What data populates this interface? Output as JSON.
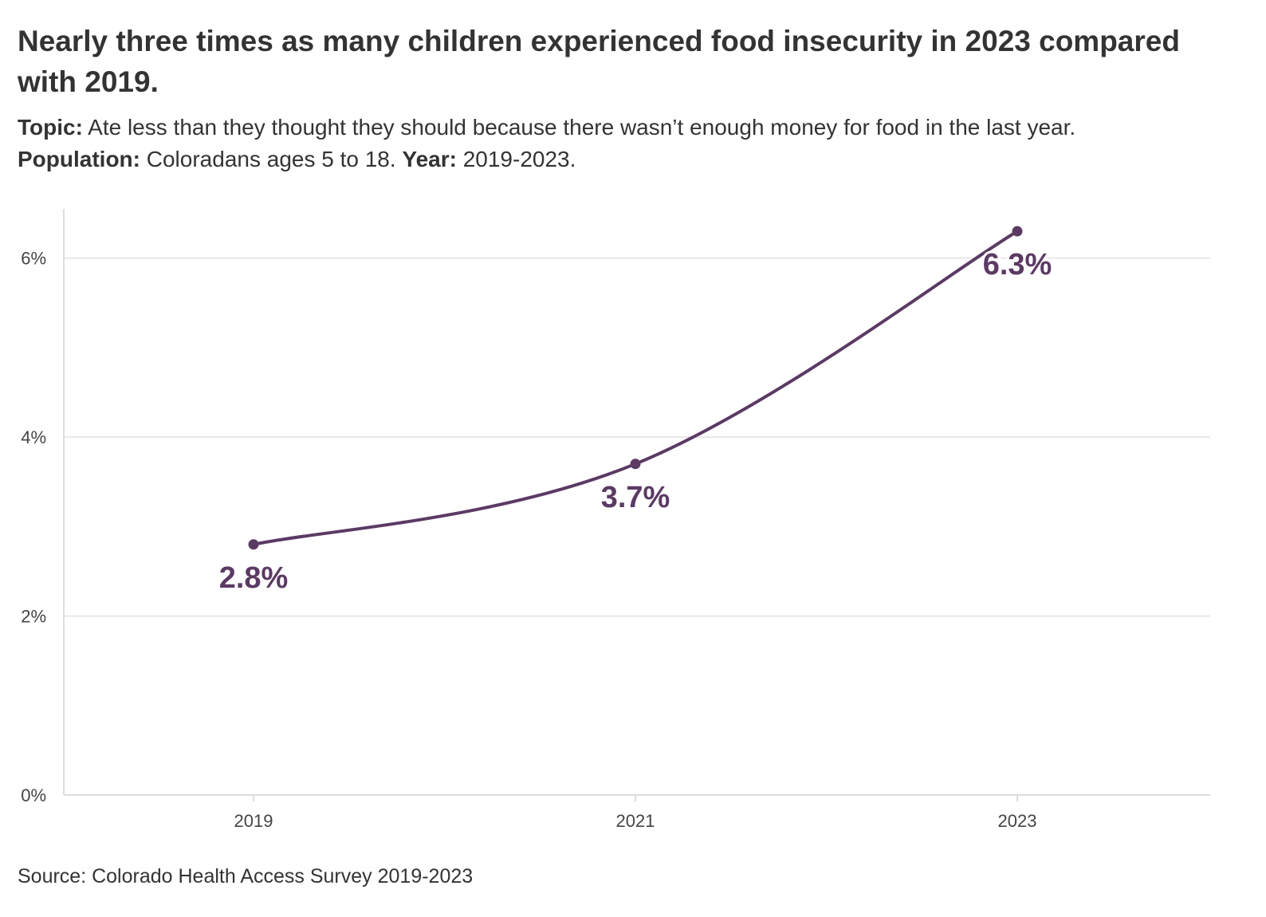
{
  "title": "Nearly three times as many children experienced food insecurity in 2023 compared with 2019.",
  "subtitle": {
    "topic_label": "Topic:",
    "topic_text": " Ate less than they thought they should because there wasn’t enough money for food in the last year.",
    "population_label": "Population:",
    "population_text": " Coloradans ages 5 to 18. ",
    "year_label": "Year:",
    "year_text": " 2019-2023."
  },
  "source": "Source: Colorado Health Access Survey 2019-2023",
  "colors": {
    "line": "#5b3a64",
    "grid": "#e8e8e8",
    "axis": "#dddddd",
    "text": "#333333"
  },
  "chart_data": {
    "type": "line",
    "title": "Nearly three times as many children experienced food insecurity in 2023 compared with 2019.",
    "xlabel": "",
    "ylabel": "",
    "x": [
      "2019",
      "2021",
      "2023"
    ],
    "series": [
      {
        "values": [
          2.8,
          3.7,
          6.3
        ],
        "labels": [
          "2.8%",
          "3.7%",
          "6.3%"
        ]
      }
    ],
    "ylim": [
      0,
      6.55
    ],
    "yticks": [
      0,
      2,
      4,
      6
    ],
    "ytick_labels": [
      "0%",
      "2%",
      "4%",
      "6%"
    ],
    "grid": true,
    "legend": "none",
    "smooth": true
  }
}
